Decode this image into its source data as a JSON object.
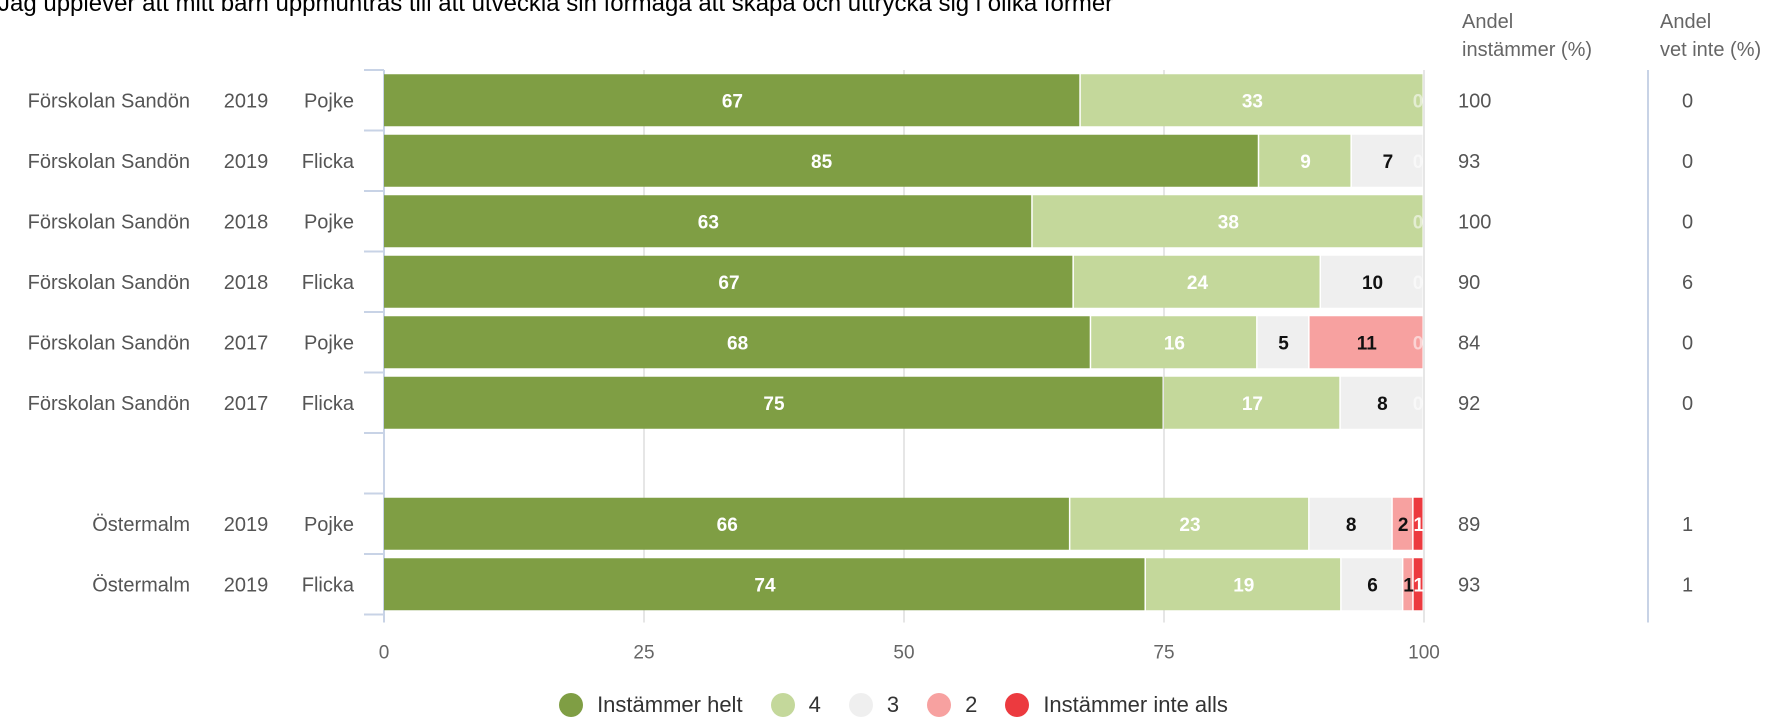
{
  "title": "Jag upplever att mitt barn uppmuntras till att utveckla sin förmåga att skapa och uttrycka sig i olika former",
  "column_headers": {
    "agree": "Andel\ninstämmer (%)",
    "dont_know": "Andel\nvet inte (%)"
  },
  "legend": [
    {
      "name": "Instämmer helt",
      "color": "#7f9e44"
    },
    {
      "name": "4",
      "color": "#c4d89b"
    },
    {
      "name": "3",
      "color": "#efefef"
    },
    {
      "name": "2",
      "color": "#f7a1a0"
    },
    {
      "name": "Instämmer inte alls",
      "color": "#ec3a3f"
    }
  ],
  "chart_data": {
    "type": "bar",
    "orientation": "horizontal",
    "stacked": true,
    "xlim": [
      0,
      100
    ],
    "x_ticks": [
      "0",
      "25",
      "50",
      "75",
      "100"
    ],
    "grid": true,
    "legend_position": "bottom",
    "series_names": [
      "Instämmer helt",
      "4",
      "3",
      "2",
      "Instämmer inte alls"
    ],
    "rows": [
      {
        "unit": "Förskolan Sandön",
        "year": "2019",
        "gender": "Pojke",
        "values": [
          67,
          33,
          0,
          0,
          0
        ],
        "labels": [
          "67",
          "33",
          "",
          "",
          "0"
        ],
        "agree": "100",
        "dont_know": "0"
      },
      {
        "unit": "Förskolan Sandön",
        "year": "2019",
        "gender": "Flicka",
        "values": [
          85,
          9,
          7,
          0,
          0
        ],
        "labels": [
          "85",
          "9",
          "7",
          "",
          "0"
        ],
        "agree": "93",
        "dont_know": "0"
      },
      {
        "unit": "Förskolan Sandön",
        "year": "2018",
        "gender": "Pojke",
        "values": [
          63,
          38,
          0,
          0,
          0
        ],
        "labels": [
          "63",
          "38",
          "",
          "",
          "0"
        ],
        "agree": "100",
        "dont_know": "0"
      },
      {
        "unit": "Förskolan Sandön",
        "year": "2018",
        "gender": "Flicka",
        "values": [
          67,
          24,
          10,
          0,
          0
        ],
        "labels": [
          "67",
          "24",
          "10",
          "",
          "0"
        ],
        "agree": "90",
        "dont_know": "6"
      },
      {
        "unit": "Förskolan Sandön",
        "year": "2017",
        "gender": "Pojke",
        "values": [
          68,
          16,
          5,
          11,
          0
        ],
        "labels": [
          "68",
          "16",
          "5",
          "11",
          "0"
        ],
        "agree": "84",
        "dont_know": "0"
      },
      {
        "unit": "Förskolan Sandön",
        "year": "2017",
        "gender": "Flicka",
        "values": [
          75,
          17,
          8,
          0,
          0
        ],
        "labels": [
          "75",
          "17",
          "8",
          "",
          "0"
        ],
        "agree": "92",
        "dont_know": "0"
      },
      null,
      {
        "unit": "Östermalm",
        "year": "2019",
        "gender": "Pojke",
        "values": [
          66,
          23,
          8,
          2,
          1
        ],
        "labels": [
          "66",
          "23",
          "8",
          "2",
          "1"
        ],
        "agree": "89",
        "dont_know": "1"
      },
      {
        "unit": "Östermalm",
        "year": "2019",
        "gender": "Flicka",
        "values": [
          74,
          19,
          6,
          1,
          1
        ],
        "labels": [
          "74",
          "19",
          "6",
          "1",
          "1"
        ],
        "agree": "93",
        "dont_know": "1"
      }
    ]
  }
}
